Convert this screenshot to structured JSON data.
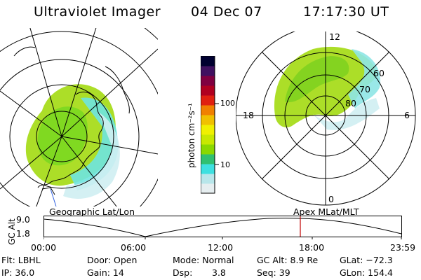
{
  "header": {
    "instrument": "Ultraviolet Imager",
    "date": "04 Dec 07",
    "time": "17:17:30 UT"
  },
  "colorbar": {
    "unit": "photon cm⁻²s⁻¹",
    "ticks": [
      "100",
      "10"
    ],
    "colors": [
      "#e6eef0",
      "#b8e6ea",
      "#3ee0e0",
      "#30c070",
      "#8ad800",
      "#c8e800",
      "#f0f000",
      "#f0c000",
      "#f08000",
      "#e02010",
      "#b00020",
      "#800040",
      "#401060",
      "#000030"
    ]
  },
  "polar_plot": {
    "mlt_labels": [
      "12",
      "18",
      "6",
      "0"
    ],
    "lat_labels": [
      "60",
      "70",
      "80"
    ]
  },
  "map_labels": {
    "left": "Geographic Lat/Lon",
    "right": "Apex MLat/MLT"
  },
  "timeline": {
    "axis_label": "GC Alt",
    "ymax": "9.0",
    "ymin": "1.8",
    "ticks": [
      "00:00",
      "06:00",
      "12:00",
      "18:00",
      "23:59"
    ],
    "marker_time": "17:17:30"
  },
  "status": {
    "flt": "Flt: LBHL",
    "ip": "IP: 36.0",
    "door": "Door: Open",
    "gain": "Gain: 14",
    "mode": "Mode: Normal",
    "dsp_label": "Dsp:",
    "dsp_value": "3.8",
    "gcalt": "GC Alt: 8.9 Re",
    "seq": "Seq: 39",
    "glat": "GLat: −72.3",
    "glon": "GLon: 154.4"
  }
}
